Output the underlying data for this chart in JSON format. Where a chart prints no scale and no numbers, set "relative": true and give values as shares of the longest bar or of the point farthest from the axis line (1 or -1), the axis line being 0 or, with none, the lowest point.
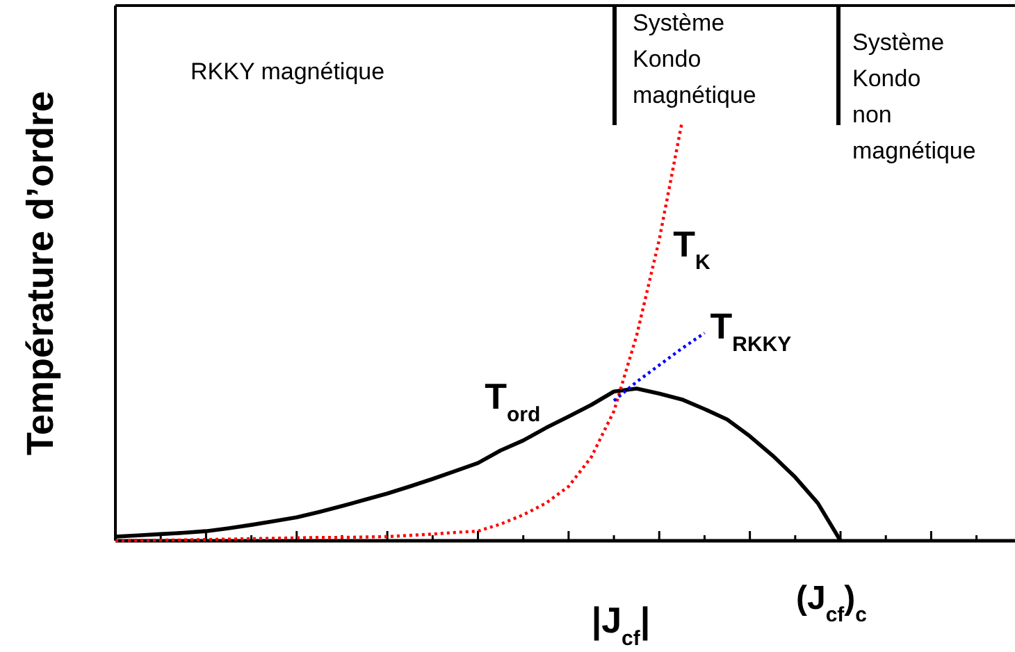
{
  "chart_data": {
    "type": "line",
    "relative": true,
    "xlabel": "|J$_{cf}$|",
    "ylabel": "Température d’ordre",
    "categories": [
      null,
      null,
      null,
      null,
      null,
      null,
      null,
      null,
      null,
      null,
      null,
      null,
      null,
      null,
      null,
      null,
      null,
      null,
      null,
      null,
      null,
      null,
      null,
      null,
      null,
      null,
      null,
      null,
      null,
      null,
      null,
      null,
      null,
      null,
      null,
      null,
      null,
      null,
      null,
      null
    ],
    "series": [
      {
        "name": "T$_{ord}$",
        "color": "#000000",
        "line_style": "solid",
        "values": [
          0.01,
          0.013,
          0.016,
          0.019,
          0.023,
          0.03,
          0.038,
          0.047,
          0.056,
          0.069,
          0.083,
          0.098,
          0.113,
          0.13,
          0.148,
          0.167,
          0.186,
          0.216,
          0.24,
          0.27,
          0.297,
          0.325,
          0.357,
          0.364,
          0.352,
          0.338,
          0.315,
          0.29,
          0.25,
          0.204,
          0.152,
          0.09,
          0,
          null,
          null,
          null,
          null,
          null,
          null,
          null
        ]
      },
      {
        "name": "T$_{K}$",
        "color": "#ff0000",
        "line_style": "dotted",
        "values": [
          0,
          0.001,
          0.0015,
          0.002,
          0.003,
          0.004,
          0.005,
          0.006,
          0.007,
          0.008,
          0.008,
          0.009,
          0.01,
          0.013,
          0.016,
          0.02,
          0.023,
          0.04,
          0.062,
          0.09,
          0.13,
          0.2,
          0.31,
          0.49,
          0.72,
          1,
          null,
          null,
          null,
          null,
          null,
          null,
          null,
          null,
          null,
          null,
          null,
          null,
          null,
          null
        ]
      },
      {
        "name": "T$_{RKKY}$",
        "color": "#0000ff",
        "line_style": "dotted",
        "values": [
          null,
          null,
          null,
          null,
          null,
          null,
          null,
          null,
          null,
          null,
          null,
          null,
          null,
          null,
          null,
          null,
          null,
          null,
          null,
          null,
          null,
          null,
          0.335,
          0.38,
          0.42,
          0.46,
          0.497,
          null,
          null,
          null,
          null,
          null,
          null,
          null,
          null,
          null,
          null,
          null,
          null,
          null
        ]
      }
    ],
    "annotations": [
      "RKKY magnétique",
      "Système Kondo magnétique",
      "Système Kondo non magnétique",
      "(J$_{cf}$)$_{c}$"
    ]
  }
}
